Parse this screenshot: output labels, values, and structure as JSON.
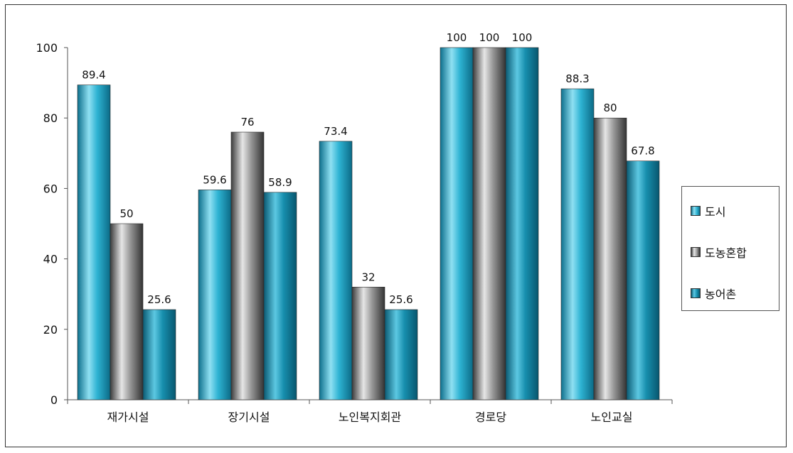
{
  "chart_data": {
    "type": "bar",
    "title": "",
    "xlabel": "",
    "ylabel": "",
    "ylim": [
      0,
      100
    ],
    "yticks": [
      0,
      20,
      40,
      60,
      80,
      100
    ],
    "categories": [
      "재가시설",
      "장기시설",
      "노인복지회관",
      "경로당",
      "노인교실"
    ],
    "series": [
      {
        "name": "도시",
        "values": [
          89.4,
          59.6,
          73.4,
          100,
          88.3
        ],
        "labels": [
          "89.4",
          "59.6",
          "73.4",
          "100",
          "88.3"
        ],
        "color": "#1fa3c4"
      },
      {
        "name": "도농혼합",
        "values": [
          50,
          76,
          32,
          100,
          80
        ],
        "labels": [
          "50",
          "76",
          "32",
          "100",
          "80"
        ],
        "color": "#8a8a8a"
      },
      {
        "name": "농어촌",
        "values": [
          25.6,
          58.9,
          25.6,
          100,
          67.8
        ],
        "labels": [
          "25.6",
          "58.9",
          "25.6",
          "100",
          "67.8"
        ],
        "color": "#1a8fae"
      }
    ],
    "legend": "right",
    "grid": false
  }
}
